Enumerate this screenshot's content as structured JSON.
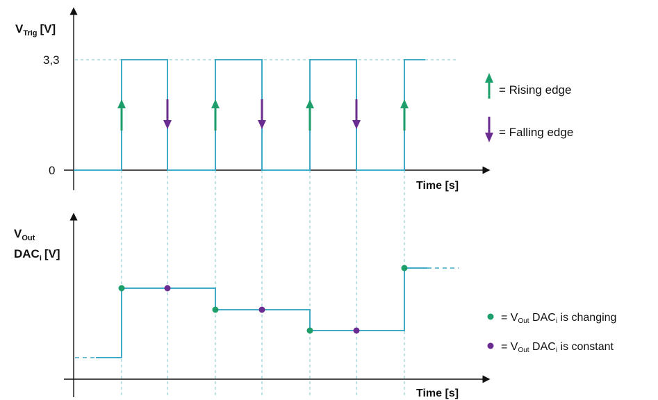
{
  "top": {
    "ylabel_main": "V",
    "ylabel_sub": "Trig",
    "ylabel_unit": "[V]",
    "tick_high": "3,3",
    "tick_zero": "0",
    "xlabel": "Time [s]"
  },
  "bottom": {
    "ylabel_line1_main": "V",
    "ylabel_line1_sub": "Out",
    "ylabel_line2_main": "DAC",
    "ylabel_line2_sub": "i",
    "ylabel_line2_unit": "[V]",
    "xlabel": "Time [s]"
  },
  "legend": {
    "rising": "= Rising edge",
    "falling": "= Falling edge",
    "changing_pre": "= V",
    "changing_sub": "Out",
    "changing_mid": " DAC",
    "changing_sub2": "i",
    "changing_post": " is changing",
    "constant_pre": "= V",
    "constant_sub": "Out",
    "constant_mid": " DAC",
    "constant_sub2": "i",
    "constant_post": " is constant"
  },
  "colors": {
    "signal": "#3fa9c8",
    "rising": "#1e9e6a",
    "falling": "#6a2c91",
    "changing_dot": "#1e9e6a",
    "constant_dot": "#6a2c91"
  }
}
